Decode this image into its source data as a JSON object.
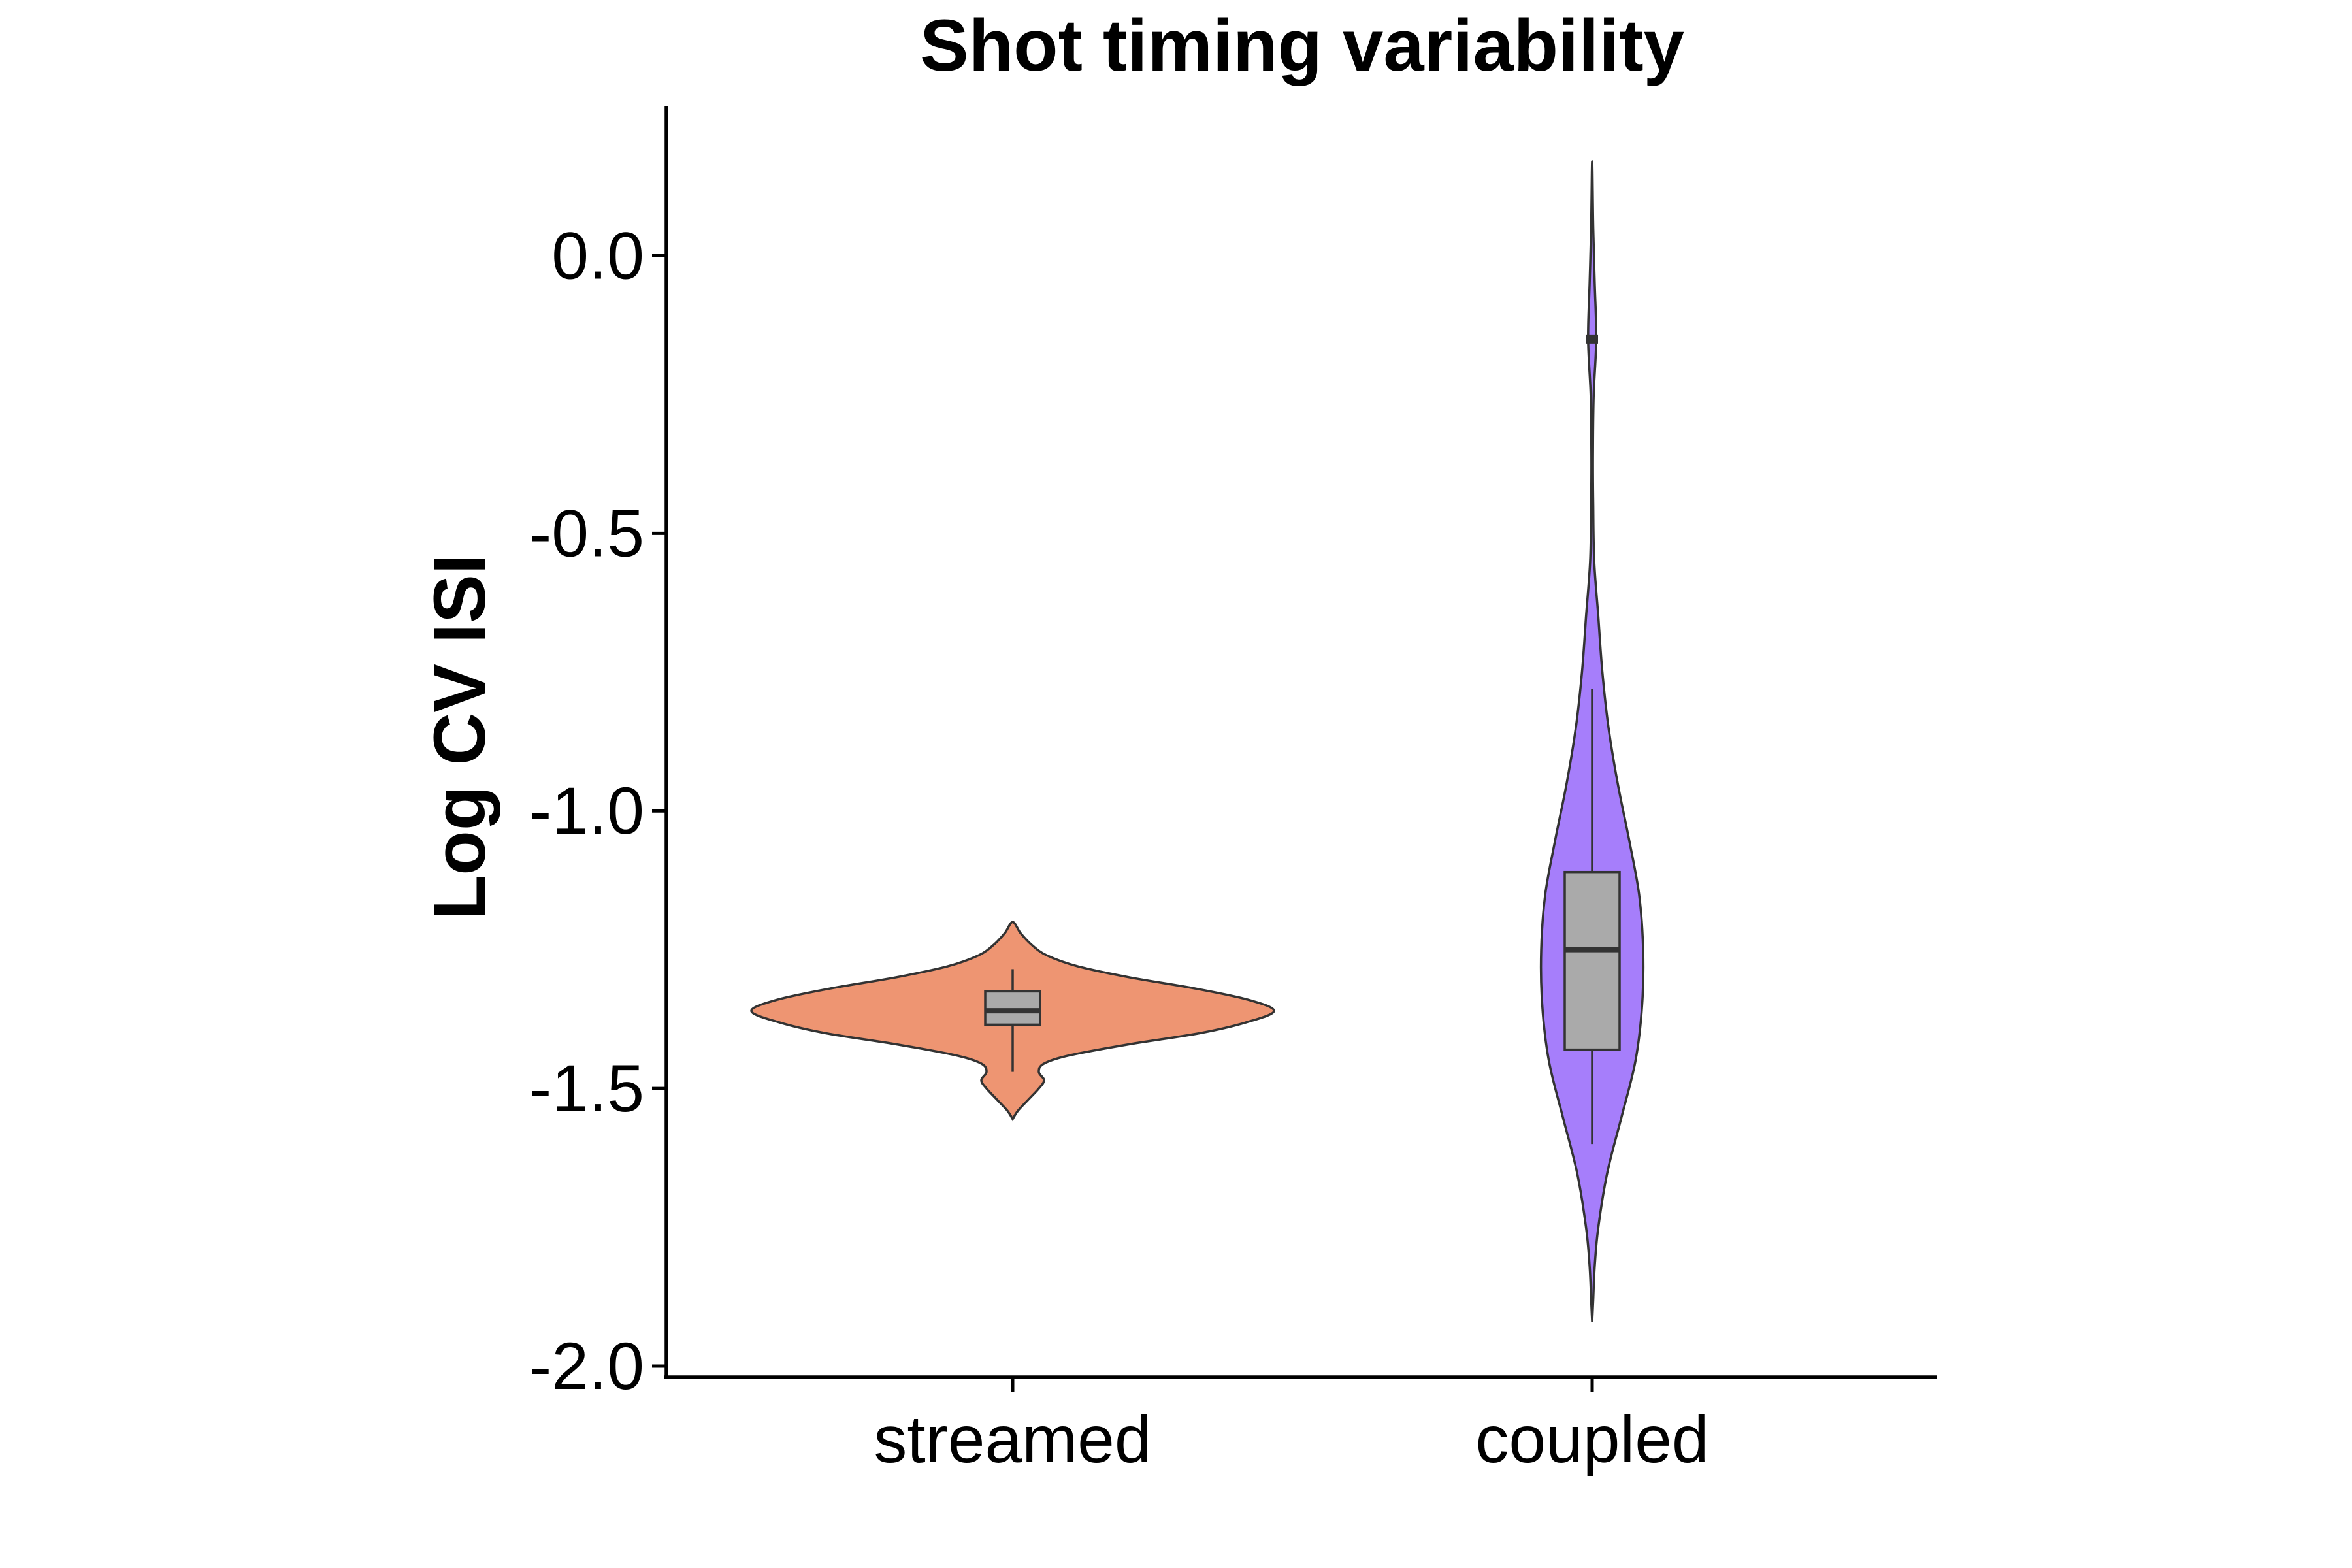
{
  "chart_data": {
    "type": "violin",
    "title": "Shot timing variability",
    "xlabel": "",
    "ylabel": "Log CV ISI",
    "ylim": [
      -2.02,
      0.27
    ],
    "y_ticks": [
      "0.0",
      "-0.5",
      "-1.0",
      "-1.5",
      "-2.0"
    ],
    "y_tick_values": [
      0.0,
      -0.5,
      -1.0,
      -1.5,
      -2.0
    ],
    "categories": [
      "streamed",
      "coupled"
    ],
    "grid": false,
    "legend": "none",
    "series": [
      {
        "category": "streamed",
        "color": "#EE9572",
        "violin_range": [
          -1.555,
          -1.2
        ],
        "box": {
          "whisker_low": -1.47,
          "q1": -1.385,
          "median": -1.36,
          "q3": -1.325,
          "whisker_high": -1.285
        },
        "density_profile": [
          [
            -1.555,
            0.0
          ],
          [
            -1.54,
            0.02
          ],
          [
            -1.52,
            0.06
          ],
          [
            -1.5,
            0.1
          ],
          [
            -1.485,
            0.12
          ],
          [
            -1.47,
            0.1
          ],
          [
            -1.455,
            0.12
          ],
          [
            -1.44,
            0.22
          ],
          [
            -1.42,
            0.45
          ],
          [
            -1.4,
            0.72
          ],
          [
            -1.38,
            0.9
          ],
          [
            -1.36,
            1.0
          ],
          [
            -1.34,
            0.9
          ],
          [
            -1.32,
            0.7
          ],
          [
            -1.3,
            0.45
          ],
          [
            -1.28,
            0.25
          ],
          [
            -1.26,
            0.13
          ],
          [
            -1.24,
            0.07
          ],
          [
            -1.22,
            0.03
          ],
          [
            -1.2,
            0.0
          ]
        ]
      },
      {
        "category": "coupled",
        "color": "#A67EFB",
        "violin_range": [
          -1.92,
          0.17
        ],
        "box": {
          "whisker_low": -1.6,
          "q1": -1.43,
          "median": -1.25,
          "q3": -1.11,
          "whisker_high": -0.78
        },
        "outlier_mark": -0.15,
        "density_profile": [
          [
            -1.92,
            0.0
          ],
          [
            -1.88,
            0.02
          ],
          [
            -1.82,
            0.05
          ],
          [
            -1.75,
            0.12
          ],
          [
            -1.65,
            0.3
          ],
          [
            -1.55,
            0.58
          ],
          [
            -1.45,
            0.85
          ],
          [
            -1.35,
            0.98
          ],
          [
            -1.25,
            1.0
          ],
          [
            -1.15,
            0.92
          ],
          [
            -1.05,
            0.72
          ],
          [
            -0.95,
            0.5
          ],
          [
            -0.85,
            0.32
          ],
          [
            -0.75,
            0.2
          ],
          [
            -0.65,
            0.12
          ],
          [
            -0.55,
            0.04
          ],
          [
            -0.45,
            0.02
          ],
          [
            -0.35,
            0.015
          ],
          [
            -0.25,
            0.03
          ],
          [
            -0.15,
            0.08
          ],
          [
            -0.05,
            0.05
          ],
          [
            0.05,
            0.02
          ],
          [
            0.17,
            0.0
          ]
        ]
      }
    ]
  }
}
